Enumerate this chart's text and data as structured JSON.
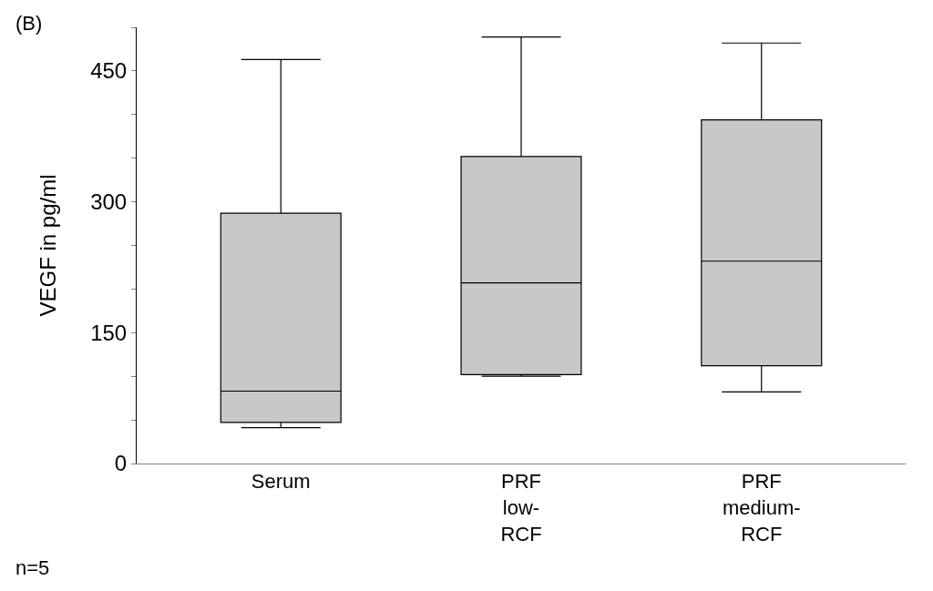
{
  "chart_data": {
    "type": "box",
    "ylabel": "VEGF in pg/ml",
    "categories": [
      "Serum",
      "PRF\nlow-\nRCF",
      "PRF\nmedium-\nRCF"
    ],
    "boxes": [
      {
        "low": 41,
        "q1": 47,
        "median": 83,
        "q3": 287,
        "high": 463
      },
      {
        "low": 100,
        "q1": 102,
        "median": 207,
        "q3": 352,
        "high": 489
      },
      {
        "low": 82,
        "q1": 112,
        "median": 232,
        "q3": 394,
        "high": 482
      }
    ],
    "color": "#c8c8c8",
    "ylim": [
      0,
      500
    ],
    "yticks": [
      0,
      {
        "value": 50,
        "label": null
      },
      {
        "value": 100,
        "label": null
      },
      150,
      {
        "value": 200,
        "label": null
      },
      {
        "value": 250,
        "label": null
      },
      300,
      {
        "value": 350,
        "label": null
      },
      {
        "value": 400,
        "label": null
      },
      450,
      {
        "value": 500,
        "label": null
      }
    ],
    "annotations": [
      "(B)",
      "n=5"
    ]
  }
}
